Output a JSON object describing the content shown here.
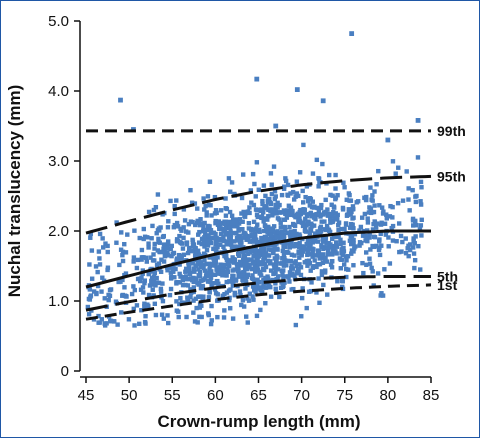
{
  "chart_data": {
    "type": "scatter",
    "xlabel": "Crown-rump length (mm)",
    "ylabel": "Nuchal translucency  (mm)",
    "xlim": [
      45,
      85
    ],
    "ylim": [
      0,
      5
    ],
    "x_ticks": [
      "45",
      "50",
      "55",
      "60",
      "65",
      "70",
      "75",
      "80",
      "85"
    ],
    "y_ticks": [
      "0",
      "1.0",
      "2.0",
      "3.0",
      "4.0",
      "5.0"
    ],
    "grid": false,
    "point_color": "#4a7fc1",
    "point_count_estimate": 1700,
    "outliers": [
      {
        "x": 49,
        "y": 3.87
      },
      {
        "x": 50.5,
        "y": 3.45
      },
      {
        "x": 64.8,
        "y": 4.17
      },
      {
        "x": 69.5,
        "y": 4.02
      },
      {
        "x": 72.5,
        "y": 3.86
      },
      {
        "x": 75.8,
        "y": 4.82
      },
      {
        "x": 67,
        "y": 3.5
      },
      {
        "x": 83.5,
        "y": 3.58
      },
      {
        "x": 80,
        "y": 3.3
      }
    ],
    "series": [
      {
        "name": "99th",
        "style": "dashed",
        "x": [
          45,
          85
        ],
        "y": [
          3.43,
          3.43
        ]
      },
      {
        "name": "95th",
        "style": "long-dashed",
        "x": [
          45,
          50,
          55,
          60,
          65,
          70,
          75,
          80,
          85
        ],
        "y": [
          1.97,
          2.14,
          2.3,
          2.45,
          2.57,
          2.66,
          2.72,
          2.76,
          2.78
        ]
      },
      {
        "name": "",
        "style": "solid",
        "x": [
          45,
          50,
          55,
          60,
          65,
          70,
          75,
          80,
          85
        ],
        "y": [
          1.2,
          1.36,
          1.52,
          1.67,
          1.79,
          1.9,
          1.97,
          2.0,
          2.0
        ]
      },
      {
        "name": "5th",
        "style": "long-dashed",
        "x": [
          45,
          50,
          55,
          60,
          65,
          70,
          75,
          80,
          85
        ],
        "y": [
          0.87,
          0.99,
          1.1,
          1.19,
          1.26,
          1.31,
          1.34,
          1.35,
          1.35
        ]
      },
      {
        "name": "1st",
        "style": "dashed",
        "x": [
          45,
          50,
          55,
          60,
          65,
          70,
          75,
          80,
          85
        ],
        "y": [
          0.74,
          0.84,
          0.93,
          1.02,
          1.09,
          1.14,
          1.18,
          1.21,
          1.23
        ]
      }
    ]
  }
}
